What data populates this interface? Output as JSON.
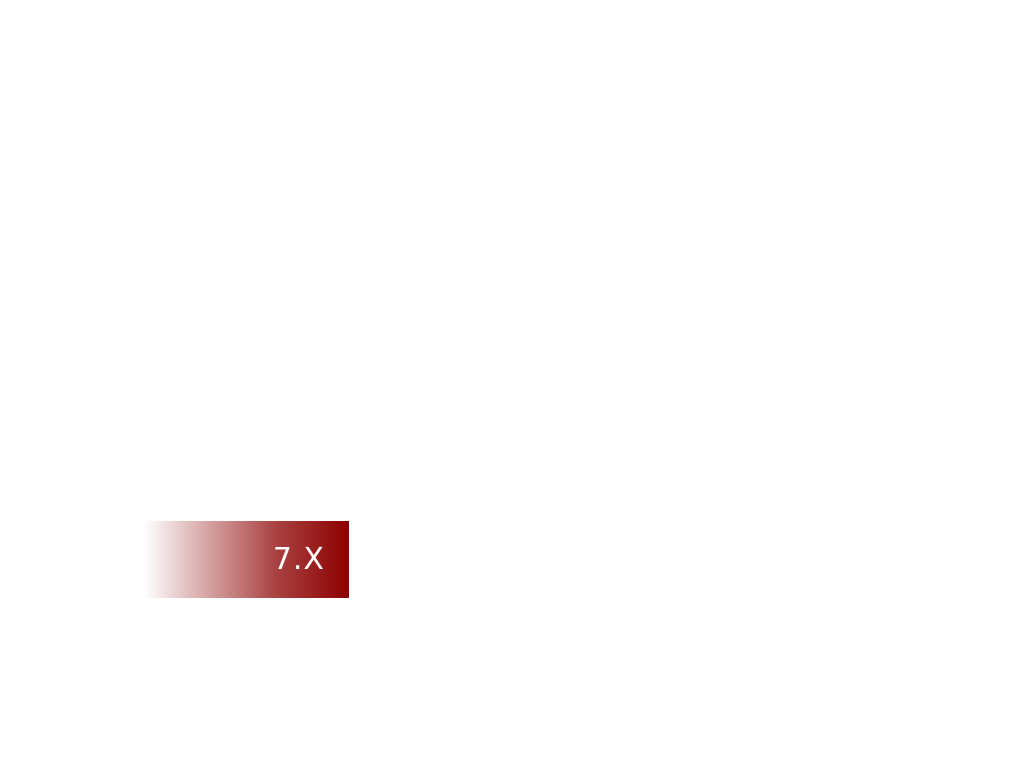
{
  "section_tag": {
    "label": "7.X",
    "color": "#8c0000"
  }
}
